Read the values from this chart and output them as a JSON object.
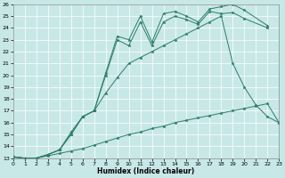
{
  "background_color": "#c8e8e8",
  "grid_color": "#aed4d4",
  "line_color": "#2d7d6a",
  "xlabel": "Humidex (Indice chaleur)",
  "xlim": [
    0,
    23
  ],
  "ylim": [
    13,
    26
  ],
  "xticks": [
    0,
    1,
    2,
    3,
    4,
    5,
    6,
    7,
    8,
    9,
    10,
    11,
    12,
    13,
    14,
    15,
    16,
    17,
    18,
    19,
    20,
    21,
    22,
    23
  ],
  "yticks": [
    13,
    14,
    15,
    16,
    17,
    18,
    19,
    20,
    21,
    22,
    23,
    24,
    25,
    26
  ],
  "series": [
    {
      "x": [
        0,
        1,
        2,
        3,
        4,
        5,
        6,
        7,
        8,
        9,
        10,
        11,
        12,
        13,
        14,
        15,
        16,
        17,
        18,
        19,
        20,
        21,
        22,
        23
      ],
      "y": [
        13.1,
        13.0,
        13.0,
        13.2,
        13.4,
        13.6,
        13.8,
        14.1,
        14.4,
        14.7,
        15.0,
        15.2,
        15.5,
        15.7,
        16.0,
        16.2,
        16.4,
        16.6,
        16.8,
        17.0,
        17.2,
        17.4,
        17.6,
        16.0
      ]
    },
    {
      "x": [
        0,
        1,
        2,
        3,
        4,
        5,
        6,
        7,
        8,
        9,
        10,
        11,
        12,
        13,
        14,
        15,
        16,
        17,
        18,
        19,
        20,
        21,
        22,
        23
      ],
      "y": [
        13.1,
        13.0,
        13.0,
        13.3,
        13.7,
        15.2,
        16.5,
        17.0,
        18.5,
        19.8,
        21.0,
        21.5,
        22.0,
        22.5,
        23.0,
        23.5,
        24.0,
        24.5,
        25.0,
        21.0,
        19.0,
        17.5,
        16.5,
        16.0
      ]
    },
    {
      "x": [
        0,
        1,
        2,
        3,
        4,
        5,
        6,
        7,
        8,
        9,
        10,
        11,
        12,
        13,
        14,
        15,
        16,
        17,
        18,
        19,
        20,
        22
      ],
      "y": [
        13.1,
        13.0,
        13.0,
        13.3,
        13.7,
        15.0,
        16.5,
        17.0,
        20.0,
        23.0,
        22.5,
        24.5,
        22.5,
        24.5,
        25.0,
        24.7,
        24.3,
        25.4,
        25.2,
        25.3,
        24.8,
        24.0
      ]
    },
    {
      "x": [
        0,
        1,
        2,
        3,
        4,
        5,
        6,
        7,
        8,
        9,
        10,
        11,
        12,
        13,
        14,
        15,
        16,
        17,
        18,
        19,
        20,
        22
      ],
      "y": [
        13.1,
        13.0,
        13.0,
        13.3,
        13.7,
        15.0,
        16.5,
        17.0,
        20.2,
        23.3,
        23.0,
        25.0,
        22.8,
        25.2,
        25.4,
        25.0,
        24.5,
        25.6,
        25.8,
        26.0,
        25.5,
        24.2
      ]
    }
  ]
}
